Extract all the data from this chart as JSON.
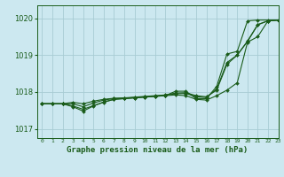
{
  "title": "Graphe pression niveau de la mer (hPa)",
  "bg_color": "#cce8f0",
  "line_color": "#1a5c1a",
  "grid_color": "#a8ccd4",
  "xlim": [
    -0.5,
    23
  ],
  "ylim": [
    1016.75,
    1020.35
  ],
  "yticks": [
    1017,
    1018,
    1019,
    1020
  ],
  "xtick_labels": [
    "0",
    "1",
    "2",
    "3",
    "4",
    "5",
    "6",
    "7",
    "8",
    "9",
    "10",
    "11",
    "12",
    "13",
    "14",
    "15",
    "16",
    "17",
    "18",
    "19",
    "20",
    "21",
    "22",
    "23"
  ],
  "series": [
    [
      1017.68,
      1017.68,
      1017.68,
      1017.72,
      1017.68,
      1017.75,
      1017.8,
      1017.83,
      1017.84,
      1017.86,
      1017.88,
      1017.9,
      1017.92,
      1017.97,
      1017.98,
      1017.9,
      1017.87,
      1018.05,
      1018.75,
      1019.0,
      1019.37,
      1019.82,
      1019.93,
      1019.95
    ],
    [
      1017.68,
      1017.68,
      1017.68,
      1017.6,
      1017.48,
      1017.62,
      1017.73,
      1017.8,
      1017.82,
      1017.84,
      1017.86,
      1017.88,
      1017.9,
      1017.92,
      1017.9,
      1017.8,
      1017.78,
      1017.9,
      1018.05,
      1018.25,
      1019.35,
      1019.5,
      1019.93,
      1019.95
    ],
    [
      1017.68,
      1017.68,
      1017.68,
      1017.62,
      1017.53,
      1017.63,
      1017.72,
      1017.8,
      1017.82,
      1017.84,
      1017.86,
      1017.88,
      1017.9,
      1018.02,
      1018.02,
      1017.82,
      1017.82,
      1018.15,
      1019.03,
      1019.1,
      1019.93,
      1019.95,
      1019.95,
      1019.95
    ],
    [
      1017.68,
      1017.68,
      1017.68,
      1017.68,
      1017.6,
      1017.7,
      1017.78,
      1017.82,
      1017.83,
      1017.85,
      1017.87,
      1017.89,
      1017.91,
      1017.95,
      1017.96,
      1017.87,
      1017.85,
      1018.08,
      1018.8,
      1019.0,
      1019.38,
      1019.83,
      1019.93,
      1019.95
    ]
  ]
}
